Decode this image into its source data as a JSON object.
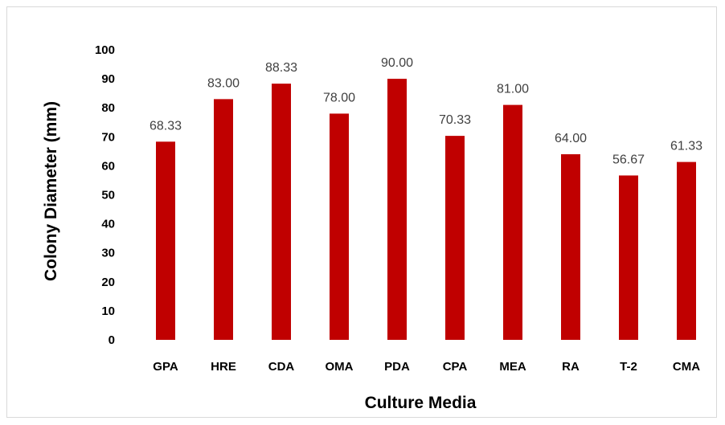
{
  "chart_data": {
    "type": "bar",
    "xlabel": "Culture Media",
    "ylabel": "Colony Diameter (mm)",
    "categories": [
      "GPA",
      "HRE",
      "CDA",
      "OMA",
      "PDA",
      "CPA",
      "MEA",
      "RA",
      "T-2",
      "CMA"
    ],
    "values": [
      68.33,
      83.0,
      88.33,
      78.0,
      90.0,
      70.33,
      81.0,
      64.0,
      56.67,
      61.33
    ],
    "value_labels": [
      "68.33",
      "83.00",
      "88.33",
      "78.00",
      "90.00",
      "70.33",
      "81.00",
      "64.00",
      "56.67",
      "61.33"
    ],
    "ylim": [
      0,
      100
    ],
    "yticks": [
      0,
      10,
      20,
      30,
      40,
      50,
      60,
      70,
      80,
      90,
      100
    ],
    "bar_color": "#c00000",
    "grid": false,
    "legend": "none"
  }
}
